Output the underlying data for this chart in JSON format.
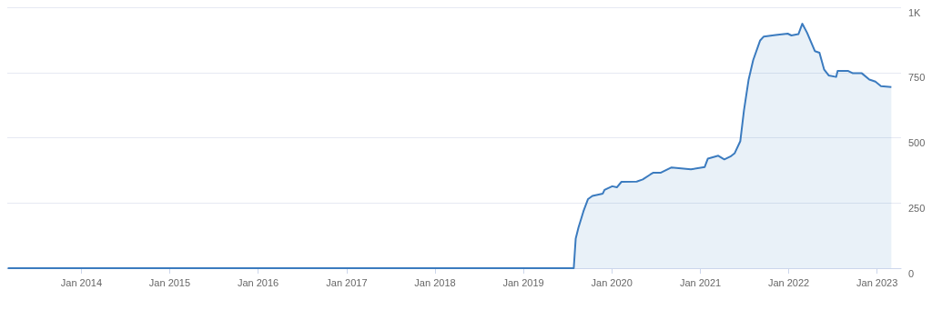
{
  "chart_data": {
    "type": "area",
    "x": [
      "2013-03-03",
      "2019-07-28",
      "2019-08-05",
      "2019-08-16",
      "2019-09-06",
      "2019-09-25",
      "2019-10-13",
      "2019-11-25",
      "2019-12-02",
      "2020-01-03",
      "2020-01-22",
      "2020-02-10",
      "2020-04-13",
      "2020-05-08",
      "2020-06-08",
      "2020-06-21",
      "2020-07-22",
      "2020-09-04",
      "2020-11-23",
      "2021-01-19",
      "2021-02-01",
      "2021-03-16",
      "2021-04-10",
      "2021-05-05",
      "2021-05-23",
      "2021-06-15",
      "2021-06-30",
      "2021-07-19",
      "2021-08-07",
      "2021-09-05",
      "2021-09-20",
      "2021-11-08",
      "2021-12-28",
      "2022-01-12",
      "2022-02-10",
      "2022-02-26",
      "2022-03-18",
      "2022-04-19",
      "2022-05-08",
      "2022-05-27",
      "2022-06-15",
      "2022-07-16",
      "2022-07-22",
      "2022-09-04",
      "2022-09-23",
      "2022-10-30",
      "2022-11-30",
      "2022-12-25",
      "2023-01-17",
      "2023-03-01"
    ],
    "series": [
      {
        "color": "#3b7bbf",
        "values": [
          0,
          0,
          113,
          154,
          218,
          265,
          277,
          286,
          300,
          314,
          310,
          331,
          332,
          340,
          359,
          366,
          366,
          386,
          379,
          388,
          420,
          431,
          417,
          428,
          441,
          487,
          604,
          721,
          797,
          873,
          888,
          894,
          899,
          892,
          897,
          937,
          902,
          832,
          826,
          762,
          739,
          733,
          756,
          756,
          747,
          747,
          723,
          715,
          698,
          694
        ]
      }
    ],
    "xlim": [
      "2013-03-01",
      "2023-04-10"
    ],
    "xticks": [
      {
        "value": "2014-01",
        "label": "Jan 2014"
      },
      {
        "value": "2015-01",
        "label": "Jan 2015"
      },
      {
        "value": "2016-01",
        "label": "Jan 2016"
      },
      {
        "value": "2017-01",
        "label": "Jan 2017"
      },
      {
        "value": "2018-01",
        "label": "Jan 2018"
      },
      {
        "value": "2019-01",
        "label": "Jan 2019"
      },
      {
        "value": "2020-01",
        "label": "Jan 2020"
      },
      {
        "value": "2021-01",
        "label": "Jan 2021"
      },
      {
        "value": "2022-01",
        "label": "Jan 2022"
      },
      {
        "value": "2023-01",
        "label": "Jan 2023"
      }
    ],
    "ylim": [
      0,
      1000
    ],
    "yticks": [
      0,
      250,
      500,
      750,
      {
        "value": 1000,
        "label": "1K"
      }
    ],
    "grid": "y",
    "marker": "none",
    "line_style": "solid"
  }
}
